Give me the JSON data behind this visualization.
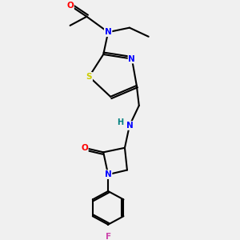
{
  "bg_color": "#f0f0f0",
  "bond_color": "#000000",
  "atom_colors": {
    "N": "#0000ff",
    "O": "#ff0000",
    "S": "#cccc00",
    "F": "#cc44aa",
    "C": "#000000",
    "H": "#008080"
  }
}
